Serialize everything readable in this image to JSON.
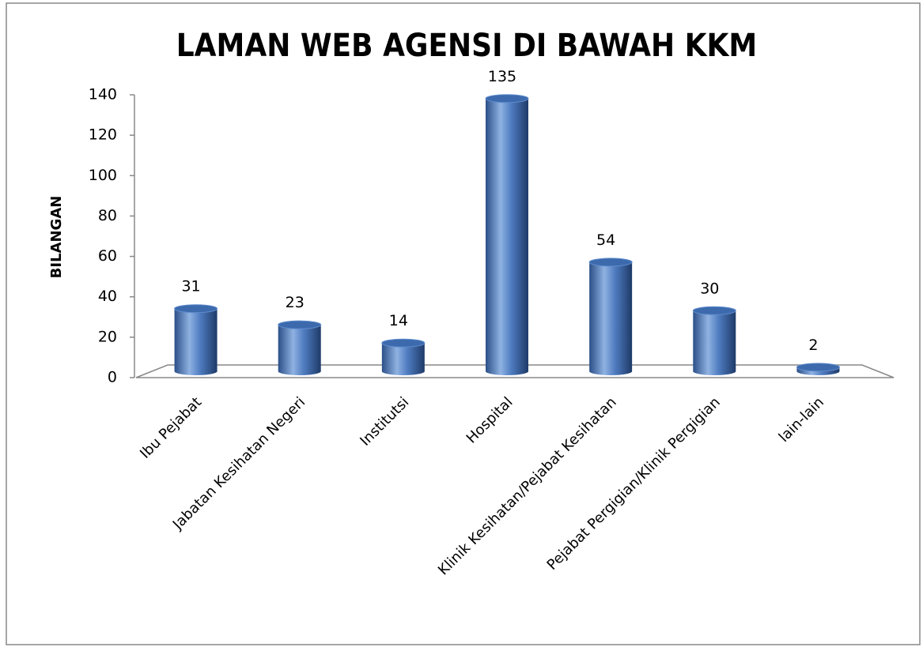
{
  "chart_data": {
    "type": "bar",
    "title": "LAMAN WEB AGENSI DI BAWAH KKM",
    "y_label": "BILANGAN",
    "categories": [
      "Ibu Pejabat",
      "Jabatan Kesihatan Negeri",
      "Institutsi",
      "Hospital",
      "Klinik Kesihatan/Pejabat Kesihatan",
      "Pejabat Pergigian/Klinik Pergigian",
      "lain-lain"
    ],
    "values": [
      31,
      23,
      14,
      135,
      54,
      30,
      2
    ],
    "color": "#3c6aad",
    "ylim": [
      0,
      140
    ],
    "yticks": [
      0,
      20,
      40,
      60,
      80,
      100,
      120,
      140
    ],
    "grid": false
  }
}
